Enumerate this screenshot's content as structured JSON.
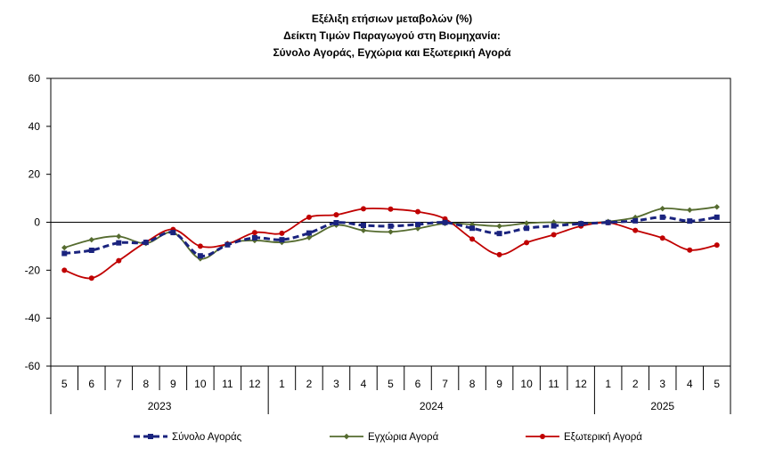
{
  "chart_data": {
    "type": "line",
    "title_lines": [
      "Εξέλιξη ετήσιων μεταβολών (%)",
      "Δείκτη Τιμών Παραγωγού στη Βιομηχανία:",
      "Σύνολο Αγοράς, Εγχώρια και Εξωτερική Αγορά"
    ],
    "categories": [
      "5",
      "6",
      "7",
      "8",
      "9",
      "10",
      "11",
      "12",
      "1",
      "2",
      "3",
      "4",
      "5",
      "6",
      "7",
      "8",
      "9",
      "10",
      "11",
      "12",
      "1",
      "2",
      "3",
      "4",
      "5"
    ],
    "year_groups": [
      {
        "label": "2023",
        "start": 0,
        "end": 7
      },
      {
        "label": "2024",
        "start": 8,
        "end": 19
      },
      {
        "label": "2025",
        "start": 20,
        "end": 24
      }
    ],
    "ylim": [
      -60,
      60
    ],
    "yticks": [
      -60,
      -40,
      -20,
      0,
      20,
      40,
      60
    ],
    "grid": false,
    "legend_position": "bottom",
    "series": [
      {
        "name": "Σύνολο Αγοράς",
        "color": "#1a237e",
        "style": "dashed",
        "marker": "square",
        "values": [
          -13.0,
          -11.7,
          -8.6,
          -8.4,
          -4.3,
          -14.0,
          -9.4,
          -6.5,
          -7.3,
          -4.5,
          -0.2,
          -1.3,
          -1.6,
          -0.9,
          -0.1,
          -2.5,
          -4.7,
          -2.5,
          -1.5,
          -0.6,
          -0.1,
          0.6,
          2.1,
          0.5,
          2.1
        ]
      },
      {
        "name": "Εγχώρια Αγορά",
        "color": "#556b2f",
        "style": "solid",
        "marker": "diamond",
        "values": [
          -10.6,
          -7.3,
          -5.9,
          -8.8,
          -4.3,
          -15.2,
          -8.9,
          -7.6,
          -8.4,
          -6.4,
          -1.2,
          -3.4,
          -4.0,
          -2.6,
          -0.5,
          -0.9,
          -1.6,
          -0.4,
          0.0,
          -0.4,
          0.3,
          2.0,
          5.7,
          5.1,
          6.4
        ]
      },
      {
        "name": "Εξωτερική Αγορά",
        "color": "#c00000",
        "style": "solid",
        "marker": "circle",
        "values": [
          -20.0,
          -23.3,
          -16.0,
          -8.3,
          -3.0,
          -10.0,
          -9.1,
          -4.3,
          -4.6,
          2.1,
          3.1,
          5.6,
          5.5,
          4.4,
          1.4,
          -7.0,
          -13.5,
          -8.5,
          -5.2,
          -1.6,
          -0.2,
          -3.4,
          -6.6,
          -11.6,
          -9.5
        ]
      }
    ]
  }
}
